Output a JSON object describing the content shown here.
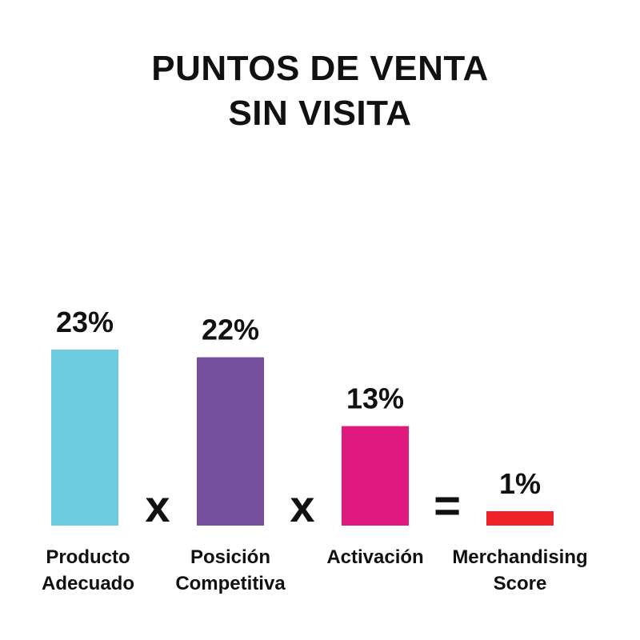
{
  "chart_data": {
    "type": "bar",
    "title_lines": [
      "PUNTOS DE VENTA",
      "SIN VISITA"
    ],
    "categories": [
      [
        "Producto",
        "Adecuado"
      ],
      [
        "Posición",
        "Competitiva"
      ],
      [
        "Activación"
      ],
      [
        "Merchandising",
        "Score"
      ]
    ],
    "values": [
      23,
      22,
      13,
      1
    ],
    "value_labels": [
      "23%",
      "22%",
      "13%",
      "1%"
    ],
    "colors": [
      "#6DCCE0",
      "#76509E",
      "#E0197E",
      "#EC2227"
    ],
    "operators": [
      "x",
      "x",
      "="
    ],
    "ylim": [
      0,
      23
    ],
    "grid": false,
    "legend": "none"
  }
}
